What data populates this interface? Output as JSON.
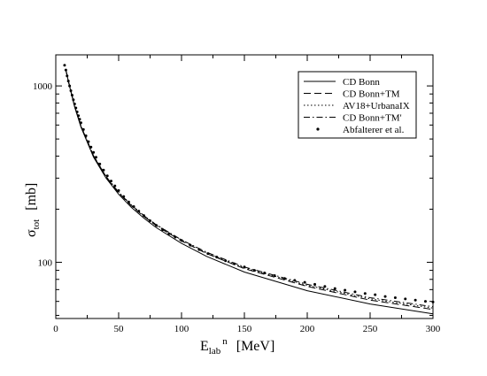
{
  "chart_data": {
    "type": "line",
    "xlabel": {
      "main": "E",
      "sub": "lab",
      "sup": "n",
      "unit": "[MeV]"
    },
    "ylabel": {
      "main": "σ",
      "sub": "tot",
      "unit": "[mb]"
    },
    "xlim": [
      0,
      300
    ],
    "ylim": [
      48,
      1500
    ],
    "yscale": "log",
    "grid": false,
    "legend_position": "top-right",
    "x_ticks": [
      0,
      50,
      100,
      150,
      200,
      250,
      300
    ],
    "x_tick_labels": [
      "0",
      "50",
      "100",
      "150",
      "200",
      "250",
      "300"
    ],
    "y_ticks": [
      100,
      1000
    ],
    "y_tick_labels": [
      "100",
      "1000"
    ],
    "series": [
      {
        "name": "CD Bonn",
        "style": "solid",
        "x": [
          8,
          10,
          15,
          20,
          30,
          40,
          50,
          60,
          70,
          80,
          100,
          120,
          150,
          200,
          250,
          300
        ],
        "y": [
          1230,
          1060,
          760,
          585,
          395,
          300,
          243,
          205,
          178,
          157,
          128,
          108,
          88,
          69,
          58,
          51
        ]
      },
      {
        "name": "CD Bonn+TM",
        "style": "dashed",
        "x": [
          8,
          10,
          15,
          20,
          30,
          40,
          50,
          60,
          70,
          80,
          100,
          120,
          150,
          200,
          250,
          300
        ],
        "y": [
          1235,
          1065,
          765,
          590,
          400,
          304,
          247,
          209,
          182,
          161,
          132,
          112,
          92,
          73,
          61,
          54
        ]
      },
      {
        "name": "AV18+UrbanaIX",
        "style": "dotted",
        "x": [
          8,
          10,
          15,
          20,
          30,
          40,
          50,
          60,
          70,
          80,
          100,
          120,
          150,
          200,
          250,
          300
        ],
        "y": [
          1240,
          1070,
          770,
          595,
          404,
          307,
          250,
          212,
          184,
          163,
          134,
          113,
          93,
          74,
          62,
          55
        ]
      },
      {
        "name": "CD Bonn+TM'",
        "style": "dashdot",
        "x": [
          8,
          10,
          15,
          20,
          30,
          40,
          50,
          60,
          70,
          80,
          100,
          120,
          150,
          200,
          250,
          300
        ],
        "y": [
          1235,
          1067,
          767,
          592,
          402,
          306,
          249,
          211,
          184,
          163,
          134,
          114,
          94,
          75,
          63,
          56
        ]
      },
      {
        "name": "Abfalterer et al.",
        "style": "points",
        "x": [
          7,
          8,
          9,
          10,
          11,
          12,
          13,
          14,
          15,
          16,
          17,
          18,
          19,
          20,
          22,
          24,
          26,
          28,
          30,
          32,
          35,
          38,
          41,
          44,
          47,
          50,
          54,
          58,
          62,
          66,
          70,
          75,
          80,
          85,
          90,
          95,
          100,
          107,
          114,
          121,
          128,
          135,
          142,
          150,
          158,
          166,
          174,
          182,
          190,
          198,
          206,
          214,
          222,
          230,
          238,
          246,
          254,
          262,
          270,
          278,
          286,
          294,
          300
        ],
        "y": [
          1310,
          1230,
          1140,
          1065,
          1000,
          940,
          885,
          835,
          790,
          750,
          712,
          678,
          647,
          618,
          566,
          521,
          483,
          450,
          420,
          394,
          361,
          333,
          309,
          289,
          271,
          255,
          236,
          220,
          207,
          195,
          184,
          172,
          162,
          153,
          145,
          139,
          133,
          125,
          118,
          112,
          107,
          102,
          98,
          94,
          90,
          87,
          84,
          81,
          79,
          77,
          75,
          73,
          71,
          69.5,
          68,
          66.5,
          65.5,
          64,
          63,
          62,
          61,
          60,
          59.5
        ]
      }
    ]
  }
}
